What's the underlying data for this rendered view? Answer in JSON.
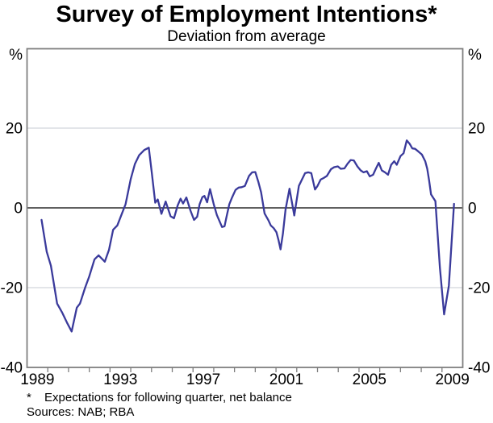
{
  "title": "Survey of Employment Intentions*",
  "subtitle": "Deviation from average",
  "footnote": {
    "marker": "*",
    "text": "Expectations for following quarter, net balance"
  },
  "sources": "Sources: NAB; RBA",
  "colors": {
    "line": "#3a3a9b",
    "grid": "#c7cbd3",
    "frame": "#7f7f7f",
    "zero_line": "#000000",
    "text": "#000000",
    "background": "#ffffff"
  },
  "chart_data": {
    "type": "line",
    "title": "Survey of Employment Intentions*",
    "subtitle": "Deviation from average",
    "xlabel": "",
    "ylabel": "%",
    "x_axis": {
      "min": 1989,
      "max": 2010,
      "tick_interval_years": 1,
      "first_tick_year": 1990,
      "last_tick_year": 2009,
      "label_years": [
        1989,
        1993,
        1997,
        2001,
        2005,
        2009
      ]
    },
    "y_axis": {
      "min": -40,
      "max": 40,
      "unit": "%",
      "tick_values": [
        20,
        0,
        -20,
        -40
      ],
      "tick_labels": [
        "20",
        "0",
        "-20",
        "-40"
      ],
      "labels_on_both_sides": true
    },
    "gridline_values": [
      20,
      -20
    ],
    "zero_line_value": 0,
    "legend": "none",
    "series": [
      {
        "name": "Employment intentions (net balance, deviation from average)",
        "color": "#3a3a9b",
        "points": [
          [
            1989.7,
            -3
          ],
          [
            1989.95,
            -11
          ],
          [
            1990.15,
            -14.5
          ],
          [
            1990.45,
            -24
          ],
          [
            1990.7,
            -26.3
          ],
          [
            1990.95,
            -29
          ],
          [
            1991.15,
            -31
          ],
          [
            1991.4,
            -25
          ],
          [
            1991.55,
            -24
          ],
          [
            1991.8,
            -20
          ],
          [
            1992.0,
            -17.2
          ],
          [
            1992.25,
            -12.9
          ],
          [
            1992.45,
            -11.9
          ],
          [
            1992.75,
            -13.5
          ],
          [
            1992.95,
            -10.5
          ],
          [
            1993.15,
            -5.5
          ],
          [
            1993.35,
            -4.4
          ],
          [
            1993.75,
            0.9
          ],
          [
            1994.0,
            7.3
          ],
          [
            1994.2,
            11.0
          ],
          [
            1994.4,
            13.2
          ],
          [
            1994.65,
            14.5
          ],
          [
            1994.87,
            15.1
          ],
          [
            1995.02,
            8.5
          ],
          [
            1995.18,
            1.3
          ],
          [
            1995.3,
            2.1
          ],
          [
            1995.48,
            -1.5
          ],
          [
            1995.68,
            1.6
          ],
          [
            1995.92,
            -2.1
          ],
          [
            1996.08,
            -2.6
          ],
          [
            1996.26,
            0.6
          ],
          [
            1996.4,
            2.3
          ],
          [
            1996.52,
            1.1
          ],
          [
            1996.68,
            2.6
          ],
          [
            1996.88,
            -0.7
          ],
          [
            1997.05,
            -3.0
          ],
          [
            1997.2,
            -2.2
          ],
          [
            1997.32,
            0.9
          ],
          [
            1997.45,
            2.7
          ],
          [
            1997.55,
            3.0
          ],
          [
            1997.68,
            1.4
          ],
          [
            1997.82,
            4.7
          ],
          [
            1998.0,
            0.9
          ],
          [
            1998.15,
            -1.8
          ],
          [
            1998.4,
            -4.8
          ],
          [
            1998.52,
            -4.6
          ],
          [
            1998.62,
            -2.1
          ],
          [
            1998.75,
            0.9
          ],
          [
            1998.88,
            2.6
          ],
          [
            1999.05,
            4.5
          ],
          [
            1999.2,
            5.1
          ],
          [
            1999.35,
            5.2
          ],
          [
            1999.5,
            5.5
          ],
          [
            1999.7,
            8.0
          ],
          [
            1999.85,
            8.9
          ],
          [
            2000.0,
            9.0
          ],
          [
            2000.15,
            6.5
          ],
          [
            2000.28,
            3.9
          ],
          [
            2000.45,
            -1.4
          ],
          [
            2000.63,
            -3.1
          ],
          [
            2000.75,
            -4.4
          ],
          [
            2000.89,
            -5.1
          ],
          [
            2001.02,
            -6.1
          ],
          [
            2001.12,
            -8.1
          ],
          [
            2001.22,
            -10.4
          ],
          [
            2001.33,
            -6.5
          ],
          [
            2001.46,
            -0.4
          ],
          [
            2001.65,
            4.8
          ],
          [
            2001.88,
            -1.9
          ],
          [
            2002.1,
            5.5
          ],
          [
            2002.25,
            7.1
          ],
          [
            2002.4,
            8.7
          ],
          [
            2002.55,
            8.9
          ],
          [
            2002.7,
            8.7
          ],
          [
            2002.88,
            4.6
          ],
          [
            2003.0,
            5.5
          ],
          [
            2003.15,
            7.1
          ],
          [
            2003.3,
            7.5
          ],
          [
            2003.45,
            8.0
          ],
          [
            2003.65,
            9.7
          ],
          [
            2003.8,
            10.2
          ],
          [
            2003.98,
            10.4
          ],
          [
            2004.12,
            9.8
          ],
          [
            2004.3,
            9.9
          ],
          [
            2004.45,
            11.1
          ],
          [
            2004.6,
            12.0
          ],
          [
            2004.75,
            11.9
          ],
          [
            2004.92,
            10.4
          ],
          [
            2005.08,
            9.4
          ],
          [
            2005.22,
            8.9
          ],
          [
            2005.38,
            9.2
          ],
          [
            2005.52,
            7.9
          ],
          [
            2005.68,
            8.3
          ],
          [
            2005.82,
            9.9
          ],
          [
            2005.95,
            11.3
          ],
          [
            2006.1,
            9.4
          ],
          [
            2006.25,
            8.9
          ],
          [
            2006.4,
            8.3
          ],
          [
            2006.55,
            10.8
          ],
          [
            2006.7,
            11.7
          ],
          [
            2006.82,
            10.8
          ],
          [
            2007.0,
            13.0
          ],
          [
            2007.15,
            13.7
          ],
          [
            2007.3,
            16.9
          ],
          [
            2007.45,
            16.0
          ],
          [
            2007.57,
            14.9
          ],
          [
            2007.7,
            14.8
          ],
          [
            2007.87,
            14.1
          ],
          [
            2008.03,
            13.4
          ],
          [
            2008.19,
            11.7
          ],
          [
            2008.29,
            9.8
          ],
          [
            2008.38,
            6.9
          ],
          [
            2008.47,
            3.4
          ],
          [
            2008.58,
            2.5
          ],
          [
            2008.68,
            1.7
          ],
          [
            2008.9,
            -15.0
          ],
          [
            2009.1,
            -26.7
          ],
          [
            2009.33,
            -19.5
          ],
          [
            2009.58,
            1.0
          ]
        ]
      }
    ]
  }
}
